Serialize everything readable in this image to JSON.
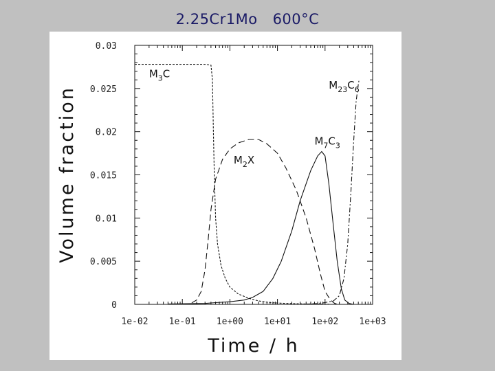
{
  "slide": {
    "title_alloy": "2.25Cr1Mo",
    "title_temp": "600°C"
  },
  "chart_data": {
    "type": "line",
    "xscale": "log",
    "xlim": [
      0.01,
      1000
    ],
    "ylim": [
      0,
      0.03
    ],
    "xlabel": "Time / h",
    "ylabel": "Volume fraction",
    "x_ticks": [
      "1e-02",
      "1e-01",
      "1e+00",
      "1e+01",
      "1e+02",
      "1e+03"
    ],
    "y_ticks": [
      "0",
      "0.005",
      "0.01",
      "0.015",
      "0.02",
      "0.025",
      "0.03"
    ],
    "annotations": [
      {
        "base": "M",
        "sub": "3",
        "tail": "C",
        "tail_sub": ""
      },
      {
        "base": "M",
        "sub": "23",
        "tail": "C",
        "tail_sub": "6"
      },
      {
        "base": "M",
        "sub": "7",
        "tail": "C",
        "tail_sub": "3"
      },
      {
        "base": "M",
        "sub": "2",
        "tail": "X",
        "tail_sub": ""
      }
    ],
    "series": [
      {
        "label": "M3C",
        "style": "short-dash",
        "points": [
          [
            0.01,
            0.0278
          ],
          [
            0.1,
            0.0278
          ],
          [
            0.3,
            0.0278
          ],
          [
            0.4,
            0.0277
          ],
          [
            0.43,
            0.026
          ],
          [
            0.45,
            0.02
          ],
          [
            0.47,
            0.015
          ],
          [
            0.5,
            0.01
          ],
          [
            0.55,
            0.007
          ],
          [
            0.65,
            0.0045
          ],
          [
            0.8,
            0.003
          ],
          [
            1.0,
            0.002
          ],
          [
            1.5,
            0.0012
          ],
          [
            2.5,
            0.0007
          ],
          [
            4,
            0.0004
          ],
          [
            7,
            0.0002
          ],
          [
            15,
            0.0001
          ],
          [
            40,
            5e-05
          ],
          [
            80,
            3e-05
          ],
          [
            120,
            2e-05
          ]
        ]
      },
      {
        "label": "M2X",
        "style": "long-dash",
        "points": [
          [
            0.1,
            0.0
          ],
          [
            0.15,
            0.0001
          ],
          [
            0.2,
            0.0005
          ],
          [
            0.25,
            0.0015
          ],
          [
            0.3,
            0.004
          ],
          [
            0.35,
            0.0075
          ],
          [
            0.4,
            0.011
          ],
          [
            0.5,
            0.0145
          ],
          [
            0.7,
            0.0168
          ],
          [
            1.0,
            0.018
          ],
          [
            1.5,
            0.0187
          ],
          [
            2.5,
            0.0191
          ],
          [
            4,
            0.0191
          ],
          [
            6,
            0.0186
          ],
          [
            10,
            0.0175
          ],
          [
            15,
            0.0158
          ],
          [
            25,
            0.0132
          ],
          [
            40,
            0.01
          ],
          [
            60,
            0.0065
          ],
          [
            80,
            0.0035
          ],
          [
            100,
            0.0015
          ],
          [
            130,
            0.0005
          ],
          [
            160,
            0.0001
          ],
          [
            200,
            0.0
          ]
        ]
      },
      {
        "label": "M7C3",
        "style": "solid",
        "points": [
          [
            0.05,
            5e-05
          ],
          [
            0.3,
            0.0001
          ],
          [
            0.5,
            0.0002
          ],
          [
            1.0,
            0.0003
          ],
          [
            2,
            0.0005
          ],
          [
            3,
            0.0008
          ],
          [
            5,
            0.0015
          ],
          [
            8,
            0.003
          ],
          [
            12,
            0.005
          ],
          [
            20,
            0.0085
          ],
          [
            30,
            0.012
          ],
          [
            50,
            0.0155
          ],
          [
            70,
            0.0172
          ],
          [
            85,
            0.0177
          ],
          [
            100,
            0.0172
          ],
          [
            120,
            0.014
          ],
          [
            150,
            0.009
          ],
          [
            180,
            0.005
          ],
          [
            220,
            0.0018
          ],
          [
            260,
            0.0005
          ],
          [
            320,
            0.0001
          ],
          [
            400,
            0.0
          ]
        ]
      },
      {
        "label": "M23C6",
        "style": "dash-dot",
        "points": [
          [
            0.05,
            0.0
          ],
          [
            30,
            0.0
          ],
          [
            80,
            0.0001
          ],
          [
            150,
            0.0004
          ],
          [
            200,
            0.001
          ],
          [
            250,
            0.003
          ],
          [
            300,
            0.007
          ],
          [
            350,
            0.013
          ],
          [
            400,
            0.019
          ],
          [
            450,
            0.0235
          ],
          [
            500,
            0.0255
          ],
          [
            520,
            0.026
          ]
        ]
      }
    ]
  }
}
